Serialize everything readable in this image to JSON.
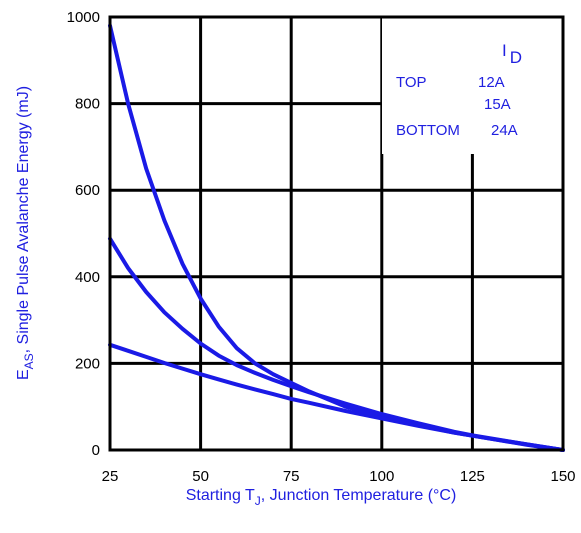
{
  "chart_data": {
    "type": "line",
    "xlabel": {
      "main": "Starting T",
      "sub": "J",
      "rest": ", Junction Temperature (°C)"
    },
    "ylabel": {
      "main": "E",
      "sub": "AS",
      "rest": ", Single Pulse Avalanche Energy (mJ)"
    },
    "xlim": [
      25,
      150
    ],
    "ylim": [
      0,
      1000
    ],
    "xticks": [
      25,
      50,
      75,
      100,
      125,
      150
    ],
    "yticks": [
      0,
      200,
      400,
      600,
      800,
      1000
    ],
    "grid": true,
    "legend": {
      "placement": "top-right",
      "header_main": "I",
      "header_sub": "D",
      "rows": [
        {
          "position": "TOP",
          "value": "12A"
        },
        {
          "position": "",
          "value": "15A"
        },
        {
          "position": "BOTTOM",
          "value": "24A"
        }
      ]
    },
    "series": [
      {
        "x": [
          25,
          30,
          35,
          40,
          45,
          50,
          55,
          60,
          65,
          70,
          75,
          80,
          90,
          100,
          110,
          120,
          125,
          130,
          140,
          150
        ],
        "values": [
          980,
          800,
          650,
          530,
          430,
          350,
          285,
          235,
          200,
          175,
          155,
          135,
          100,
          78,
          58,
          40,
          33,
          26,
          12,
          0
        ]
      },
      {
        "x": [
          25,
          30,
          35,
          40,
          45,
          50,
          55,
          60,
          65,
          70,
          75,
          80,
          90,
          100,
          110,
          120,
          125,
          130,
          140,
          150
        ],
        "values": [
          488,
          420,
          365,
          318,
          280,
          246,
          218,
          196,
          178,
          162,
          147,
          133,
          107,
          83,
          62,
          42,
          34,
          27,
          13,
          0
        ]
      },
      {
        "x": [
          25,
          30,
          35,
          40,
          45,
          50,
          55,
          60,
          65,
          70,
          75,
          80,
          90,
          100,
          110,
          120,
          125,
          130,
          140,
          150
        ],
        "values": [
          243,
          229,
          215,
          201,
          188,
          175,
          163,
          151,
          140,
          129,
          118,
          109,
          90,
          73,
          56,
          40,
          33,
          26,
          13,
          0
        ]
      }
    ],
    "colors": {
      "series": "#1a1ae6",
      "label": "#2020e0",
      "axis": "#000000"
    }
  }
}
